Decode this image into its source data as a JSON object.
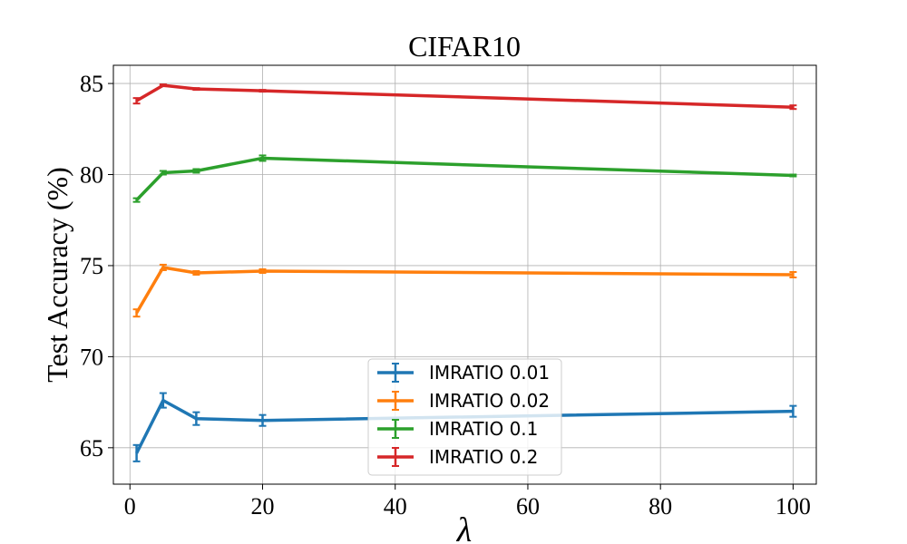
{
  "chart_data": {
    "type": "line",
    "title": "CIFAR10",
    "xlabel": "λ",
    "ylabel": "Test Accuracy (%)",
    "x": [
      1,
      5,
      10,
      20,
      100
    ],
    "xlim": [
      -2.5,
      103.5
    ],
    "ylim": [
      63.0,
      86.0
    ],
    "xticks": [
      0,
      20,
      40,
      60,
      80,
      100
    ],
    "yticks": [
      65,
      70,
      75,
      80,
      85
    ],
    "grid": true,
    "legend_position": "bottom-center",
    "series": [
      {
        "name": "IMRATIO 0.01",
        "color": "#1f77b4",
        "values": [
          64.7,
          67.6,
          66.6,
          66.5,
          67.0
        ],
        "errors": [
          0.45,
          0.4,
          0.35,
          0.3,
          0.3
        ]
      },
      {
        "name": "IMRATIO 0.02",
        "color": "#ff7f0e",
        "values": [
          72.4,
          74.9,
          74.6,
          74.7,
          74.5
        ],
        "errors": [
          0.2,
          0.15,
          0.1,
          0.1,
          0.15
        ]
      },
      {
        "name": "IMRATIO 0.1",
        "color": "#2ca02c",
        "values": [
          78.6,
          80.1,
          80.2,
          80.9,
          79.95
        ],
        "errors": [
          0.1,
          0.1,
          0.1,
          0.15,
          0.05
        ]
      },
      {
        "name": "IMRATIO 0.2",
        "color": "#d62728",
        "values": [
          84.05,
          84.9,
          84.7,
          84.6,
          83.7
        ],
        "errors": [
          0.15,
          0.05,
          0.05,
          0.05,
          0.1
        ]
      }
    ]
  }
}
